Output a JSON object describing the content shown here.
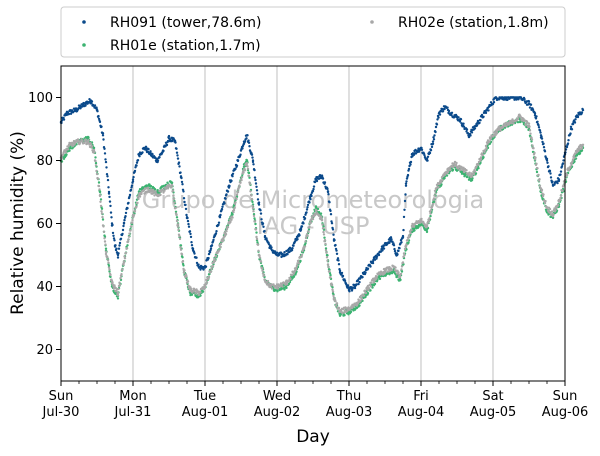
{
  "chart_data": {
    "type": "scatter",
    "title": "",
    "xlabel": "Day",
    "ylabel": "Relative humidity (%)",
    "xlim": [
      "2023-07-30",
      "2023-08-06"
    ],
    "ylim": [
      10,
      110
    ],
    "yticks": [
      20,
      40,
      60,
      80,
      100
    ],
    "x_ticks": [
      {
        "day": "Sun",
        "date": "Jul-30"
      },
      {
        "day": "Mon",
        "date": "Jul-31"
      },
      {
        "day": "Tue",
        "date": "Aug-01"
      },
      {
        "day": "Wed",
        "date": "Aug-02"
      },
      {
        "day": "Thu",
        "date": "Aug-03"
      },
      {
        "day": "Fri",
        "date": "Aug-04"
      },
      {
        "day": "Sat",
        "date": "Aug-05"
      },
      {
        "day": "Sun",
        "date": "Aug-06"
      }
    ],
    "grid": "vertical",
    "legend_placement": "top",
    "watermark": [
      "Grupo de Micrometeorologia",
      "IAG - USP"
    ],
    "series": [
      {
        "name": "RH091 (tower,78.6m)",
        "color": "#0b4a8b",
        "points": [
          [
            "2023-07-30 00:00",
            92
          ],
          [
            "2023-07-30 02:00",
            95
          ],
          [
            "2023-07-30 05:00",
            96
          ],
          [
            "2023-07-30 08:00",
            98
          ],
          [
            "2023-07-30 10:00",
            99
          ],
          [
            "2023-07-30 12:00",
            96
          ],
          [
            "2023-07-30 14:00",
            88
          ],
          [
            "2023-07-30 16:00",
            70
          ],
          [
            "2023-07-30 17:00",
            60
          ],
          [
            "2023-07-30 18:00",
            53
          ],
          [
            "2023-07-30 19:00",
            50
          ],
          [
            "2023-07-30 21:00",
            60
          ],
          [
            "2023-07-31 00:00",
            74
          ],
          [
            "2023-07-31 02:00",
            82
          ],
          [
            "2023-07-31 04:00",
            84
          ],
          [
            "2023-07-31 06:00",
            82
          ],
          [
            "2023-07-31 08:00",
            80
          ],
          [
            "2023-07-31 10:00",
            83
          ],
          [
            "2023-07-31 12:00",
            87
          ],
          [
            "2023-07-31 14:00",
            86
          ],
          [
            "2023-07-31 16:00",
            75
          ],
          [
            "2023-07-31 18:00",
            62
          ],
          [
            "2023-07-31 20:00",
            52
          ],
          [
            "2023-07-31 22:00",
            46
          ],
          [
            "2023-08-01 00:00",
            46
          ],
          [
            "2023-08-01 02:00",
            52
          ],
          [
            "2023-08-01 05:00",
            62
          ],
          [
            "2023-08-01 08:00",
            72
          ],
          [
            "2023-08-01 11:00",
            80
          ],
          [
            "2023-08-01 13:00",
            86
          ],
          [
            "2023-08-01 14:00",
            88
          ],
          [
            "2023-08-01 16:00",
            80
          ],
          [
            "2023-08-01 18:00",
            66
          ],
          [
            "2023-08-01 20:00",
            56
          ],
          [
            "2023-08-01 22:00",
            52
          ],
          [
            "2023-08-02 00:00",
            50
          ],
          [
            "2023-08-02 02:00",
            50
          ],
          [
            "2023-08-02 05:00",
            52
          ],
          [
            "2023-08-02 08:00",
            58
          ],
          [
            "2023-08-02 11:00",
            68
          ],
          [
            "2023-08-02 13:00",
            74
          ],
          [
            "2023-08-02 15:00",
            75
          ],
          [
            "2023-08-02 17:00",
            70
          ],
          [
            "2023-08-02 19:00",
            55
          ],
          [
            "2023-08-02 21:00",
            45
          ],
          [
            "2023-08-03 00:00",
            39
          ],
          [
            "2023-08-03 02:00",
            40
          ],
          [
            "2023-08-03 05:00",
            44
          ],
          [
            "2023-08-03 08:00",
            48
          ],
          [
            "2023-08-03 11:00",
            52
          ],
          [
            "2023-08-03 14:00",
            55
          ],
          [
            "2023-08-03 16:00",
            50
          ],
          [
            "2023-08-03 18:00",
            56
          ],
          [
            "2023-08-03 19:00",
            72
          ],
          [
            "2023-08-03 21:00",
            82
          ],
          [
            "2023-08-04 00:00",
            84
          ],
          [
            "2023-08-04 02:00",
            80
          ],
          [
            "2023-08-04 04:00",
            86
          ],
          [
            "2023-08-04 06:00",
            95
          ],
          [
            "2023-08-04 08:00",
            97
          ],
          [
            "2023-08-04 10:00",
            95
          ],
          [
            "2023-08-04 13:00",
            93
          ],
          [
            "2023-08-04 16:00",
            88
          ],
          [
            "2023-08-04 19:00",
            92
          ],
          [
            "2023-08-04 22:00",
            96
          ],
          [
            "2023-08-05 01:00",
            100
          ],
          [
            "2023-08-05 05:00",
            100
          ],
          [
            "2023-08-05 09:00",
            100
          ],
          [
            "2023-08-05 12:00",
            98
          ],
          [
            "2023-08-05 14:00",
            95
          ],
          [
            "2023-08-05 16:00",
            88
          ],
          [
            "2023-08-05 18:00",
            80
          ],
          [
            "2023-08-05 20:00",
            72
          ],
          [
            "2023-08-05 22:00",
            74
          ],
          [
            "2023-08-06 00:00",
            82
          ],
          [
            "2023-08-06 02:00",
            90
          ],
          [
            "2023-08-06 04:00",
            94
          ],
          [
            "2023-08-06 06:00",
            96
          ]
        ]
      },
      {
        "name": "RH01e (station,1.7m)",
        "color": "#3cb371",
        "points": [
          [
            "2023-07-30 00:00",
            80
          ],
          [
            "2023-07-30 03:00",
            84
          ],
          [
            "2023-07-30 06:00",
            86
          ],
          [
            "2023-07-30 09:00",
            87
          ],
          [
            "2023-07-30 11:00",
            84
          ],
          [
            "2023-07-30 13:00",
            70
          ],
          [
            "2023-07-30 15:00",
            52
          ],
          [
            "2023-07-30 17:00",
            40
          ],
          [
            "2023-07-30 19:00",
            37
          ],
          [
            "2023-07-30 21:00",
            48
          ],
          [
            "2023-07-31 00:00",
            62
          ],
          [
            "2023-07-31 02:00",
            70
          ],
          [
            "2023-07-31 05:00",
            72
          ],
          [
            "2023-07-31 08:00",
            70
          ],
          [
            "2023-07-31 11:00",
            72
          ],
          [
            "2023-07-31 13:00",
            73
          ],
          [
            "2023-07-31 15:00",
            60
          ],
          [
            "2023-07-31 17:00",
            45
          ],
          [
            "2023-07-31 19:00",
            38
          ],
          [
            "2023-07-31 22:00",
            37
          ],
          [
            "2023-08-01 00:00",
            40
          ],
          [
            "2023-08-01 03:00",
            48
          ],
          [
            "2023-08-01 06:00",
            55
          ],
          [
            "2023-08-01 09:00",
            63
          ],
          [
            "2023-08-01 11:00",
            70
          ],
          [
            "2023-08-01 13:00",
            78
          ],
          [
            "2023-08-01 14:00",
            80
          ],
          [
            "2023-08-01 16:00",
            66
          ],
          [
            "2023-08-01 18:00",
            50
          ],
          [
            "2023-08-01 20:00",
            42
          ],
          [
            "2023-08-01 22:00",
            40
          ],
          [
            "2023-08-02 00:00",
            39
          ],
          [
            "2023-08-02 03:00",
            40
          ],
          [
            "2023-08-02 06:00",
            44
          ],
          [
            "2023-08-02 09:00",
            52
          ],
          [
            "2023-08-02 11:00",
            60
          ],
          [
            "2023-08-02 13:00",
            65
          ],
          [
            "2023-08-02 15:00",
            62
          ],
          [
            "2023-08-02 17:00",
            48
          ],
          [
            "2023-08-02 19:00",
            36
          ],
          [
            "2023-08-02 21:00",
            31
          ],
          [
            "2023-08-03 00:00",
            32
          ],
          [
            "2023-08-03 03:00",
            34
          ],
          [
            "2023-08-03 06:00",
            38
          ],
          [
            "2023-08-03 09:00",
            42
          ],
          [
            "2023-08-03 12:00",
            44
          ],
          [
            "2023-08-03 15:00",
            45
          ],
          [
            "2023-08-03 17:00",
            42
          ],
          [
            "2023-08-03 19:00",
            52
          ],
          [
            "2023-08-03 21:00",
            58
          ],
          [
            "2023-08-04 00:00",
            60
          ],
          [
            "2023-08-04 02:00",
            58
          ],
          [
            "2023-08-04 05:00",
            70
          ],
          [
            "2023-08-04 08:00",
            75
          ],
          [
            "2023-08-04 11:00",
            78
          ],
          [
            "2023-08-04 14:00",
            76
          ],
          [
            "2023-08-04 17:00",
            74
          ],
          [
            "2023-08-04 20:00",
            80
          ],
          [
            "2023-08-04 23:00",
            86
          ],
          [
            "2023-08-05 02:00",
            90
          ],
          [
            "2023-08-05 06:00",
            92
          ],
          [
            "2023-08-05 09:00",
            93
          ],
          [
            "2023-08-05 12:00",
            90
          ],
          [
            "2023-08-05 14:00",
            80
          ],
          [
            "2023-08-05 16:00",
            70
          ],
          [
            "2023-08-05 18:00",
            64
          ],
          [
            "2023-08-05 20:00",
            62
          ],
          [
            "2023-08-05 22:00",
            66
          ],
          [
            "2023-08-06 01:00",
            76
          ],
          [
            "2023-08-06 04:00",
            82
          ],
          [
            "2023-08-06 06:00",
            84
          ]
        ]
      },
      {
        "name": "RH02e (station,1.8m)",
        "color": "#a8a8a8",
        "points": [
          [
            "2023-07-30 00:00",
            81
          ],
          [
            "2023-07-30 03:00",
            85
          ],
          [
            "2023-07-30 06:00",
            86
          ],
          [
            "2023-07-30 09:00",
            86
          ],
          [
            "2023-07-30 11:00",
            83
          ],
          [
            "2023-07-30 13:00",
            69
          ],
          [
            "2023-07-30 15:00",
            51
          ],
          [
            "2023-07-30 17:00",
            41
          ],
          [
            "2023-07-30 19:00",
            38
          ],
          [
            "2023-07-30 21:00",
            48
          ],
          [
            "2023-07-31 00:00",
            62
          ],
          [
            "2023-07-31 02:00",
            69
          ],
          [
            "2023-07-31 05:00",
            71
          ],
          [
            "2023-07-31 08:00",
            69
          ],
          [
            "2023-07-31 11:00",
            71
          ],
          [
            "2023-07-31 13:00",
            72
          ],
          [
            "2023-07-31 15:00",
            59
          ],
          [
            "2023-07-31 17:00",
            45
          ],
          [
            "2023-07-31 19:00",
            39
          ],
          [
            "2023-07-31 22:00",
            38
          ],
          [
            "2023-08-01 00:00",
            40
          ],
          [
            "2023-08-01 03:00",
            48
          ],
          [
            "2023-08-01 06:00",
            55
          ],
          [
            "2023-08-01 09:00",
            62
          ],
          [
            "2023-08-01 11:00",
            70
          ],
          [
            "2023-08-01 13:00",
            77
          ],
          [
            "2023-08-01 14:00",
            79
          ],
          [
            "2023-08-01 16:00",
            65
          ],
          [
            "2023-08-01 18:00",
            50
          ],
          [
            "2023-08-01 20:00",
            42
          ],
          [
            "2023-08-01 22:00",
            40
          ],
          [
            "2023-08-02 00:00",
            40
          ],
          [
            "2023-08-02 03:00",
            41
          ],
          [
            "2023-08-02 06:00",
            45
          ],
          [
            "2023-08-02 09:00",
            52
          ],
          [
            "2023-08-02 11:00",
            60
          ],
          [
            "2023-08-02 13:00",
            64
          ],
          [
            "2023-08-02 15:00",
            61
          ],
          [
            "2023-08-02 17:00",
            47
          ],
          [
            "2023-08-02 19:00",
            36
          ],
          [
            "2023-08-02 21:00",
            32
          ],
          [
            "2023-08-03 00:00",
            33
          ],
          [
            "2023-08-03 03:00",
            35
          ],
          [
            "2023-08-03 06:00",
            39
          ],
          [
            "2023-08-03 09:00",
            43
          ],
          [
            "2023-08-03 12:00",
            45
          ],
          [
            "2023-08-03 15:00",
            46
          ],
          [
            "2023-08-03 17:00",
            43
          ],
          [
            "2023-08-03 19:00",
            53
          ],
          [
            "2023-08-03 21:00",
            59
          ],
          [
            "2023-08-04 00:00",
            61
          ],
          [
            "2023-08-04 02:00",
            59
          ],
          [
            "2023-08-04 05:00",
            71
          ],
          [
            "2023-08-04 08:00",
            76
          ],
          [
            "2023-08-04 11:00",
            79
          ],
          [
            "2023-08-04 14:00",
            77
          ],
          [
            "2023-08-04 17:00",
            75
          ],
          [
            "2023-08-04 20:00",
            81
          ],
          [
            "2023-08-04 23:00",
            87
          ],
          [
            "2023-08-05 02:00",
            90
          ],
          [
            "2023-08-05 06:00",
            92
          ],
          [
            "2023-08-05 09:00",
            94
          ],
          [
            "2023-08-05 12:00",
            91
          ],
          [
            "2023-08-05 14:00",
            81
          ],
          [
            "2023-08-05 16:00",
            71
          ],
          [
            "2023-08-05 18:00",
            65
          ],
          [
            "2023-08-05 20:00",
            63
          ],
          [
            "2023-08-05 22:00",
            67
          ],
          [
            "2023-08-06 01:00",
            77
          ],
          [
            "2023-08-06 04:00",
            83
          ],
          [
            "2023-08-06 06:00",
            85
          ]
        ]
      }
    ]
  }
}
